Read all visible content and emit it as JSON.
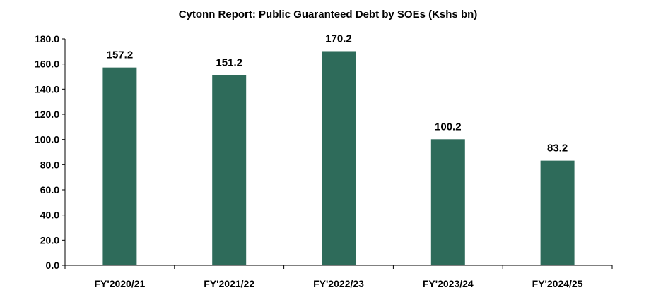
{
  "chart_data": {
    "type": "bar",
    "title": "Cytonn Report: Public Guaranteed Debt by SOEs (Kshs bn)",
    "xlabel": "",
    "ylabel": "",
    "categories": [
      "FY'2020/21",
      "FY'2021/22",
      "FY'2022/23",
      "FY'2023/24",
      "FY'2024/25"
    ],
    "values": [
      157.2,
      151.2,
      170.2,
      100.2,
      83.2
    ],
    "data_labels": [
      "157.2",
      "151.2",
      "170.2",
      "100.2",
      "83.2"
    ],
    "yticks": [
      "0.0",
      "20.0",
      "40.0",
      "60.0",
      "80.0",
      "100.0",
      "120.0",
      "140.0",
      "160.0",
      "180.0"
    ],
    "ylim": [
      0,
      180
    ],
    "bar_color": "#2e6b5a",
    "grid": false,
    "legend": "none"
  }
}
